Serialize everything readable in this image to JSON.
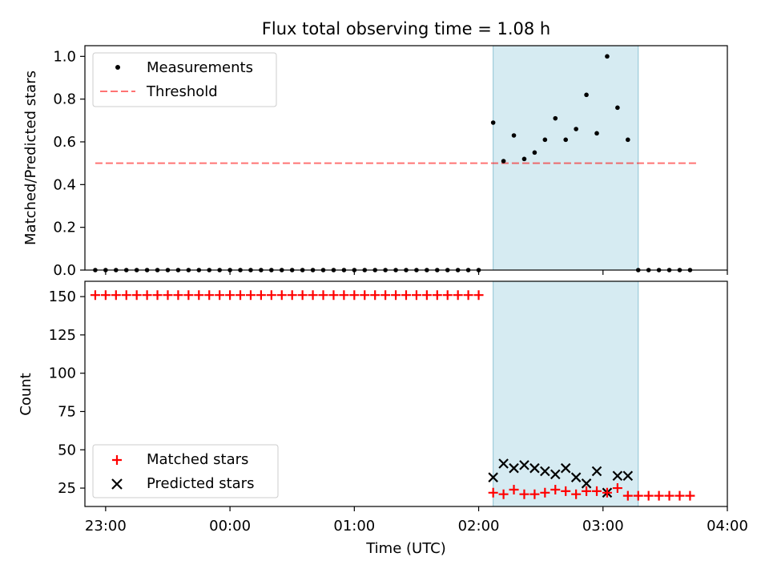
{
  "title": "Flux total observing time = 1.08 h",
  "colors": {
    "highlight": "#add8e6",
    "threshold": "#ff0000",
    "matched": "#ff0000",
    "predicted": "#000000",
    "measurement": "#000000"
  },
  "chart_data": [
    {
      "type": "scatter",
      "ylabel": "Matched/Predicted stars",
      "ylim": [
        0,
        1.05
      ],
      "yticks": [
        0.0,
        0.2,
        0.4,
        0.6,
        0.8,
        1.0
      ],
      "ytick_labels": [
        "0.0",
        "0.2",
        "0.4",
        "0.6",
        "0.8",
        "1.0"
      ],
      "xlim": [
        "22:50",
        "04:00"
      ],
      "legend": {
        "position": "top-left",
        "entries": [
          "Measurements",
          "Threshold"
        ]
      },
      "highlight_span": {
        "start": "02:07",
        "end": "03:17"
      },
      "threshold": {
        "value": 0.5,
        "x_start": "22:55",
        "x_end": "03:45"
      },
      "series": [
        {
          "name": "Measurements",
          "marker": "dot",
          "x": [
            "22:55",
            "23:00",
            "23:05",
            "23:10",
            "23:15",
            "23:20",
            "23:25",
            "23:30",
            "23:35",
            "23:40",
            "23:45",
            "23:50",
            "23:55",
            "00:00",
            "00:05",
            "00:10",
            "00:15",
            "00:20",
            "00:25",
            "00:30",
            "00:35",
            "00:40",
            "00:45",
            "00:50",
            "00:55",
            "01:00",
            "01:05",
            "01:10",
            "01:15",
            "01:20",
            "01:25",
            "01:30",
            "01:35",
            "01:40",
            "01:45",
            "01:50",
            "01:55",
            "02:00",
            "02:07",
            "02:12",
            "02:17",
            "02:22",
            "02:27",
            "02:32",
            "02:37",
            "02:42",
            "02:47",
            "02:52",
            "02:57",
            "03:02",
            "03:07",
            "03:12",
            "03:17",
            "03:22",
            "03:27",
            "03:32",
            "03:37",
            "03:42"
          ],
          "y": [
            0,
            0,
            0,
            0,
            0,
            0,
            0,
            0,
            0,
            0,
            0,
            0,
            0,
            0,
            0,
            0,
            0,
            0,
            0,
            0,
            0,
            0,
            0,
            0,
            0,
            0,
            0,
            0,
            0,
            0,
            0,
            0,
            0,
            0,
            0,
            0,
            0,
            0,
            0.69,
            0.51,
            0.63,
            0.52,
            0.55,
            0.61,
            0.71,
            0.61,
            0.66,
            0.82,
            0.64,
            1.0,
            0.76,
            0.61,
            0,
            0,
            0,
            0,
            0,
            0
          ]
        }
      ]
    },
    {
      "type": "scatter",
      "ylabel": "Count",
      "xlabel": "Time (UTC)",
      "ylim": [
        13,
        160
      ],
      "yticks": [
        25,
        50,
        75,
        100,
        125,
        150
      ],
      "ytick_labels": [
        "25",
        "50",
        "75",
        "100",
        "125",
        "150"
      ],
      "xlim": [
        "22:50",
        "04:00"
      ],
      "xticks": [
        "23:00",
        "00:00",
        "01:00",
        "02:00",
        "03:00",
        "04:00"
      ],
      "legend": {
        "position": "bottom-left",
        "entries": [
          "Matched stars",
          "Predicted stars"
        ]
      },
      "highlight_span": {
        "start": "02:07",
        "end": "03:17"
      },
      "series": [
        {
          "name": "Matched stars",
          "marker": "plus",
          "x": [
            "22:55",
            "23:00",
            "23:05",
            "23:10",
            "23:15",
            "23:20",
            "23:25",
            "23:30",
            "23:35",
            "23:40",
            "23:45",
            "23:50",
            "23:55",
            "00:00",
            "00:05",
            "00:10",
            "00:15",
            "00:20",
            "00:25",
            "00:30",
            "00:35",
            "00:40",
            "00:45",
            "00:50",
            "00:55",
            "01:00",
            "01:05",
            "01:10",
            "01:15",
            "01:20",
            "01:25",
            "01:30",
            "01:35",
            "01:40",
            "01:45",
            "01:50",
            "01:55",
            "02:00",
            "02:07",
            "02:12",
            "02:17",
            "02:22",
            "02:27",
            "02:32",
            "02:37",
            "02:42",
            "02:47",
            "02:52",
            "02:57",
            "03:02",
            "03:07",
            "03:12",
            "03:17",
            "03:22",
            "03:27",
            "03:32",
            "03:37",
            "03:42"
          ],
          "y": [
            151,
            151,
            151,
            151,
            151,
            151,
            151,
            151,
            151,
            151,
            151,
            151,
            151,
            151,
            151,
            151,
            151,
            151,
            151,
            151,
            151,
            151,
            151,
            151,
            151,
            151,
            151,
            151,
            151,
            151,
            151,
            151,
            151,
            151,
            151,
            151,
            151,
            151,
            22,
            21,
            24,
            21,
            21,
            22,
            24,
            23,
            21,
            23,
            23,
            22,
            25,
            20,
            20,
            20,
            20,
            20,
            20,
            20
          ]
        },
        {
          "name": "Predicted stars",
          "marker": "x",
          "x": [
            "02:07",
            "02:12",
            "02:17",
            "02:22",
            "02:27",
            "02:32",
            "02:37",
            "02:42",
            "02:47",
            "02:52",
            "02:57",
            "03:02",
            "03:07",
            "03:12"
          ],
          "y": [
            32,
            41,
            38,
            40,
            38,
            36,
            34,
            38,
            32,
            28,
            36,
            22,
            33,
            33
          ]
        }
      ]
    }
  ]
}
